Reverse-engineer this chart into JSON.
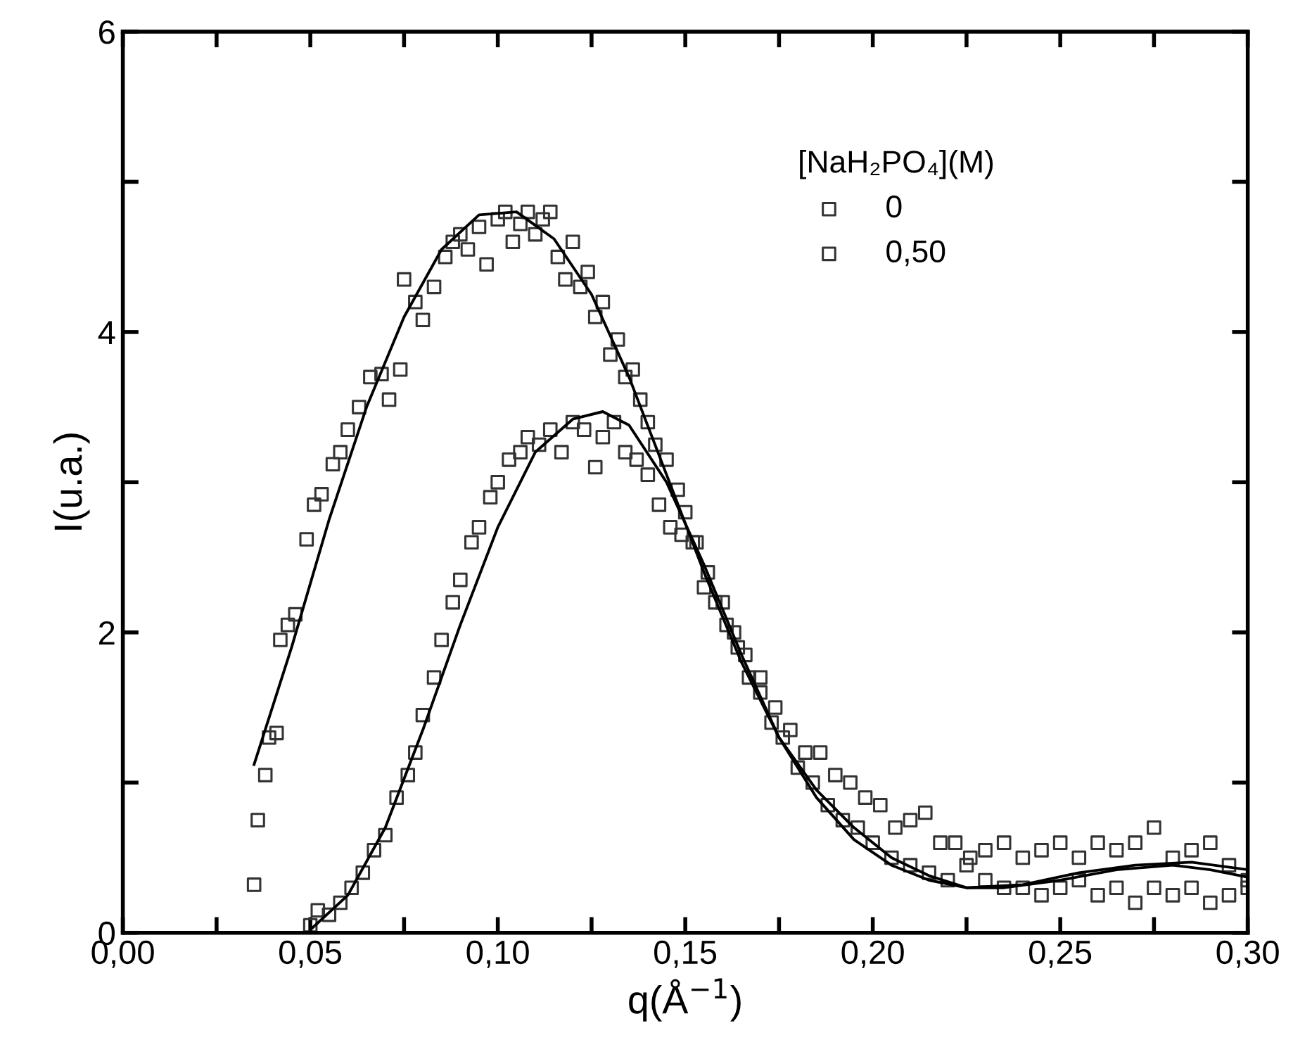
{
  "chart_data": {
    "type": "scatter",
    "xlabel": "q(Å$^{−1}$)",
    "ylabel": "I(u.a.)",
    "legend_title": "[NaH₂PO₄](M)",
    "legend": "top right",
    "marker": "square",
    "grid": false,
    "xlim": [
      0,
      0.3
    ],
    "ylim": [
      0,
      6
    ],
    "xticks": [
      {
        "value": 0,
        "label": "0,00"
      },
      {
        "value": 0.025,
        "label": null
      },
      {
        "value": 0.05,
        "label": "0,05"
      },
      {
        "value": 0.075,
        "label": null
      },
      {
        "value": 0.1,
        "label": "0,10"
      },
      {
        "value": 0.125,
        "label": null
      },
      {
        "value": 0.15,
        "label": "0,15"
      },
      {
        "value": 0.175,
        "label": null
      },
      {
        "value": 0.2,
        "label": "0,20"
      },
      {
        "value": 0.225,
        "label": null
      },
      {
        "value": 0.25,
        "label": "0,25"
      },
      {
        "value": 0.275,
        "label": null
      },
      {
        "value": 0.3,
        "label": "0,30"
      }
    ],
    "yticks": [
      0,
      {
        "value": 1,
        "label": null
      },
      2,
      {
        "value": 3,
        "label": null
      },
      4,
      {
        "value": 5,
        "label": null
      },
      6
    ],
    "series": [
      {
        "name": "0",
        "color": "#333333",
        "x": [
          0.035,
          0.036,
          0.038,
          0.039,
          0.041,
          0.042,
          0.044,
          0.046,
          0.049,
          0.051,
          0.053,
          0.056,
          0.058,
          0.06,
          0.063,
          0.066,
          0.069,
          0.071,
          0.074,
          0.075,
          0.078,
          0.08,
          0.083,
          0.086,
          0.088,
          0.09,
          0.092,
          0.095,
          0.097,
          0.1,
          0.102,
          0.104,
          0.106,
          0.108,
          0.11,
          0.112,
          0.114,
          0.116,
          0.118,
          0.12,
          0.122,
          0.124,
          0.126,
          0.128,
          0.13,
          0.132,
          0.134,
          0.136,
          0.138,
          0.14,
          0.142,
          0.145,
          0.148,
          0.15,
          0.153,
          0.156,
          0.16,
          0.163,
          0.166,
          0.17,
          0.174,
          0.178,
          0.182,
          0.186,
          0.19,
          0.194,
          0.198,
          0.202,
          0.206,
          0.21,
          0.214,
          0.218,
          0.222,
          0.226,
          0.23,
          0.235,
          0.24,
          0.245,
          0.25,
          0.255,
          0.26,
          0.265,
          0.27,
          0.275,
          0.28,
          0.285,
          0.29,
          0.295,
          0.3
        ],
        "values": [
          0.32,
          0.75,
          1.05,
          1.3,
          1.33,
          1.95,
          2.05,
          2.12,
          2.62,
          2.85,
          2.92,
          3.12,
          3.2,
          3.35,
          3.5,
          3.7,
          3.72,
          3.55,
          3.75,
          4.35,
          4.2,
          4.08,
          4.3,
          4.5,
          4.6,
          4.65,
          4.55,
          4.7,
          4.45,
          4.75,
          4.8,
          4.6,
          4.72,
          4.8,
          4.65,
          4.75,
          4.8,
          4.5,
          4.35,
          4.6,
          4.3,
          4.4,
          4.1,
          4.2,
          3.85,
          3.95,
          3.7,
          3.75,
          3.55,
          3.4,
          3.25,
          3.15,
          2.95,
          2.8,
          2.6,
          2.4,
          2.2,
          2.0,
          1.85,
          1.7,
          1.5,
          1.35,
          1.2,
          1.2,
          1.05,
          1.0,
          0.9,
          0.85,
          0.7,
          0.75,
          0.8,
          0.6,
          0.6,
          0.5,
          0.55,
          0.6,
          0.5,
          0.55,
          0.6,
          0.5,
          0.6,
          0.55,
          0.6,
          0.7,
          0.5,
          0.55,
          0.6,
          0.45,
          0.35
        ]
      },
      {
        "name": "0,50",
        "color": "#333333",
        "x": [
          0.05,
          0.052,
          0.055,
          0.058,
          0.061,
          0.064,
          0.067,
          0.07,
          0.073,
          0.076,
          0.078,
          0.08,
          0.083,
          0.085,
          0.088,
          0.09,
          0.093,
          0.095,
          0.098,
          0.1,
          0.103,
          0.106,
          0.108,
          0.111,
          0.114,
          0.117,
          0.12,
          0.123,
          0.126,
          0.128,
          0.131,
          0.134,
          0.137,
          0.14,
          0.143,
          0.146,
          0.149,
          0.152,
          0.155,
          0.158,
          0.161,
          0.164,
          0.167,
          0.17,
          0.173,
          0.176,
          0.18,
          0.184,
          0.188,
          0.192,
          0.196,
          0.2,
          0.205,
          0.21,
          0.215,
          0.22,
          0.225,
          0.23,
          0.235,
          0.24,
          0.245,
          0.25,
          0.255,
          0.26,
          0.265,
          0.27,
          0.275,
          0.28,
          0.285,
          0.29,
          0.295,
          0.3
        ],
        "values": [
          0.05,
          0.15,
          0.12,
          0.2,
          0.3,
          0.4,
          0.55,
          0.65,
          0.9,
          1.05,
          1.2,
          1.45,
          1.7,
          1.95,
          2.2,
          2.35,
          2.6,
          2.7,
          2.9,
          3.0,
          3.15,
          3.2,
          3.3,
          3.25,
          3.35,
          3.2,
          3.4,
          3.35,
          3.1,
          3.3,
          3.4,
          3.2,
          3.15,
          3.05,
          2.85,
          2.7,
          2.65,
          2.6,
          2.3,
          2.2,
          2.05,
          1.9,
          1.7,
          1.6,
          1.4,
          1.3,
          1.1,
          1.0,
          0.85,
          0.75,
          0.7,
          0.6,
          0.5,
          0.45,
          0.4,
          0.35,
          0.45,
          0.35,
          0.3,
          0.3,
          0.25,
          0.3,
          0.35,
          0.25,
          0.3,
          0.2,
          0.3,
          0.25,
          0.3,
          0.2,
          0.25,
          0.3
        ]
      },
      {
        "type": "line",
        "marker": "none",
        "color": "#000000",
        "x": [
          0.035,
          0.045,
          0.055,
          0.065,
          0.075,
          0.085,
          0.095,
          0.105,
          0.115,
          0.125,
          0.135,
          0.145,
          0.155,
          0.165,
          0.175,
          0.185,
          0.195,
          0.205,
          0.215,
          0.225,
          0.235,
          0.25,
          0.265,
          0.28,
          0.29,
          0.3
        ],
        "values": [
          1.12,
          1.9,
          2.75,
          3.5,
          4.1,
          4.55,
          4.78,
          4.8,
          4.62,
          4.25,
          3.7,
          3.05,
          2.4,
          1.8,
          1.3,
          0.95,
          0.7,
          0.5,
          0.38,
          0.3,
          0.3,
          0.35,
          0.42,
          0.45,
          0.42,
          0.37
        ]
      },
      {
        "type": "line",
        "marker": "none",
        "color": "#000000",
        "x": [
          0.05,
          0.06,
          0.07,
          0.08,
          0.09,
          0.1,
          0.11,
          0.12,
          0.128,
          0.135,
          0.145,
          0.155,
          0.165,
          0.175,
          0.185,
          0.195,
          0.205,
          0.215,
          0.225,
          0.24,
          0.255,
          0.27,
          0.285,
          0.3
        ],
        "values": [
          0.02,
          0.25,
          0.7,
          1.35,
          2.05,
          2.7,
          3.2,
          3.42,
          3.47,
          3.38,
          3.0,
          2.45,
          1.85,
          1.3,
          0.9,
          0.62,
          0.45,
          0.35,
          0.3,
          0.32,
          0.4,
          0.45,
          0.47,
          0.42
        ]
      }
    ]
  }
}
